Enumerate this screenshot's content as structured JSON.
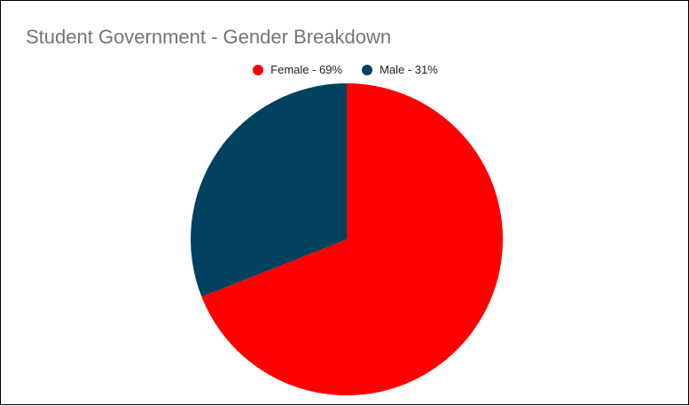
{
  "chart_data": {
    "type": "pie",
    "title": "Student Government - Gender Breakdown",
    "legend_position": "top",
    "slices": [
      {
        "label": "Female - 69%",
        "value": 69,
        "color": "#ff0000"
      },
      {
        "label": "Male - 31%",
        "value": 31,
        "color": "#01425e"
      }
    ]
  }
}
